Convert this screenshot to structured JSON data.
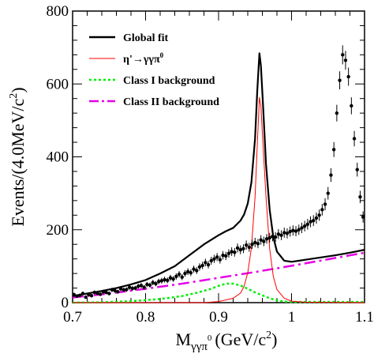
{
  "chart_data": {
    "type": "line",
    "xlabel": "M",
    "xlabel_sub": "γγπ",
    "xlabel_sup": "0",
    "xlabel_unit": "(GeV/c",
    "xlabel_unit_sup": "2",
    "xlabel_unit_end": ")",
    "ylabel": "Events/(4.0MeV/c",
    "ylabel_sup": "2",
    "ylabel_end": ")",
    "xlim": [
      0.7,
      1.1
    ],
    "ylim": [
      0,
      800
    ],
    "xticks": [
      0.7,
      0.8,
      0.9,
      1,
      1.1
    ],
    "xtick_labels": [
      "0.7",
      "0.8",
      "0.9",
      "1",
      "1.1"
    ],
    "yticks": [
      0,
      200,
      400,
      600,
      800
    ],
    "ytick_labels": [
      "0",
      "200",
      "400",
      "600",
      "800"
    ],
    "legend_position": "top-left",
    "legend": [
      {
        "label": "Global fit",
        "color": "#000000",
        "style": "solid-thick"
      },
      {
        "label": "η'→γγπ",
        "sup": "0",
        "color": "#ff0000",
        "style": "solid"
      },
      {
        "label": "Class I background",
        "color": "#00ee00",
        "style": "dotted"
      },
      {
        "label": "Class II background",
        "color": "#e600e6",
        "style": "dashdot"
      }
    ],
    "series": [
      {
        "name": "Global fit",
        "color": "#000000",
        "x": [
          0.7,
          0.72,
          0.74,
          0.76,
          0.78,
          0.8,
          0.82,
          0.84,
          0.86,
          0.88,
          0.9,
          0.91,
          0.92,
          0.93,
          0.935,
          0.94,
          0.945,
          0.95,
          0.953,
          0.956,
          0.958,
          0.961,
          0.965,
          0.97,
          0.975,
          0.98,
          0.99,
          1.0,
          1.02,
          1.04,
          1.06,
          1.08,
          1.1
        ],
        "y": [
          18,
          25,
          32,
          40,
          50,
          62,
          80,
          100,
          130,
          160,
          185,
          196,
          205,
          225,
          242,
          272,
          330,
          450,
          580,
          684,
          650,
          540,
          380,
          255,
          180,
          140,
          115,
          112,
          118,
          124,
          130,
          137,
          145
        ]
      },
      {
        "name": "η'→γγπ0",
        "color": "#ff0000",
        "x": [
          0.7,
          0.88,
          0.9,
          0.92,
          0.93,
          0.935,
          0.94,
          0.945,
          0.95,
          0.953,
          0.956,
          0.958,
          0.961,
          0.965,
          0.97,
          0.975,
          0.98,
          0.99,
          1.0,
          1.02,
          1.1
        ],
        "y": [
          0,
          0,
          3,
          12,
          26,
          45,
          82,
          150,
          290,
          430,
          563,
          540,
          430,
          290,
          148,
          72,
          36,
          12,
          4,
          1,
          0
        ]
      },
      {
        "name": "Class I background",
        "color": "#00ee00",
        "x": [
          0.7,
          0.74,
          0.78,
          0.82,
          0.85,
          0.87,
          0.89,
          0.9,
          0.91,
          0.92,
          0.93,
          0.94,
          0.95,
          0.96,
          0.97,
          0.98,
          0.99,
          1.0,
          1.1
        ],
        "y": [
          0,
          1,
          4,
          10,
          18,
          27,
          38,
          46,
          52,
          52,
          47,
          38,
          28,
          20,
          12,
          6,
          3,
          2,
          2
        ]
      },
      {
        "name": "Class II background",
        "color": "#e600e6",
        "x": [
          0.7,
          0.75,
          0.8,
          0.85,
          0.9,
          0.95,
          1.0,
          1.05,
          1.1
        ],
        "y": [
          14,
          25,
          38,
          52,
          68,
          84,
          101,
          119,
          137
        ]
      }
    ],
    "data_points": {
      "name": "Data",
      "x_start": 0.702,
      "x_step": 0.004,
      "y": [
        22,
        18,
        20,
        25,
        15,
        22,
        19,
        28,
        26,
        23,
        30,
        28,
        25,
        35,
        33,
        30,
        38,
        35,
        36,
        42,
        39,
        40,
        45,
        47,
        42,
        50,
        48,
        55,
        52,
        58,
        60,
        63,
        61,
        68,
        65,
        72,
        78,
        70,
        80,
        85,
        82,
        92,
        88,
        98,
        102,
        110,
        104,
        115,
        120,
        125,
        118,
        130,
        128,
        135,
        140,
        138,
        150,
        145,
        148,
        158,
        152,
        160,
        165,
        162,
        172,
        168,
        175,
        178,
        182,
        180,
        188,
        185,
        192,
        190,
        195,
        198,
        196,
        200,
        205,
        210,
        215,
        222,
        225,
        232,
        240,
        255,
        270,
        300,
        350,
        420,
        520,
        610,
        680,
        665,
        620,
        540,
        450,
        365,
        290,
        235,
        195,
        170,
        150,
        138,
        128,
        120,
        118,
        115,
        112,
        110,
        115,
        112,
        118,
        114,
        120,
        117,
        122,
        119,
        124,
        121,
        125,
        127,
        124,
        130,
        128,
        133,
        130,
        135,
        132,
        138,
        136,
        140,
        138,
        143,
        140,
        145,
        142,
        148,
        144,
        147
      ],
      "error_scale": 1.0
    }
  }
}
